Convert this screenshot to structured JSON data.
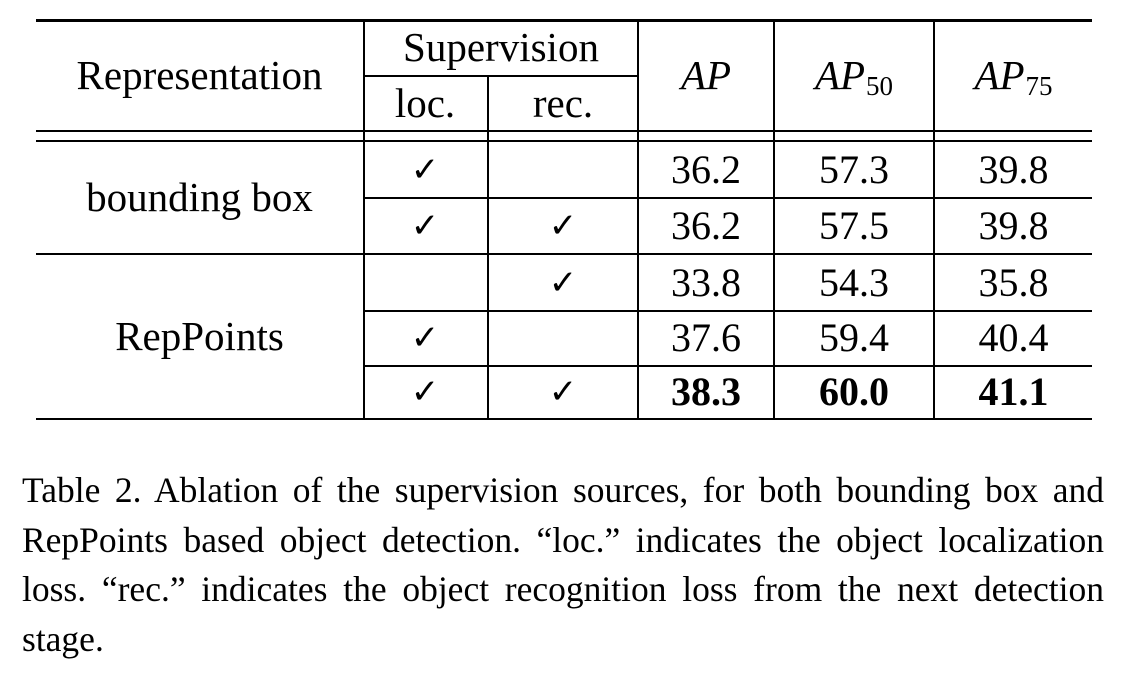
{
  "table": {
    "header": {
      "representation": "Representation",
      "supervision": "Supervision",
      "loc": "loc.",
      "rec": "rec.",
      "ap": "AP",
      "ap50_base": "AP",
      "ap50_sub": "50",
      "ap75_base": "AP",
      "ap75_sub": "75"
    },
    "check_mark": "✓",
    "groups": [
      {
        "label": "bounding box"
      },
      {
        "label": "RepPoints"
      }
    ],
    "rows": [
      {
        "group": 0,
        "loc": true,
        "rec": false,
        "ap": "36.2",
        "ap50": "57.3",
        "ap75": "39.8",
        "bold": false
      },
      {
        "group": 0,
        "loc": true,
        "rec": true,
        "ap": "36.2",
        "ap50": "57.5",
        "ap75": "39.8",
        "bold": false
      },
      {
        "group": 1,
        "loc": false,
        "rec": true,
        "ap": "33.8",
        "ap50": "54.3",
        "ap75": "35.8",
        "bold": false
      },
      {
        "group": 1,
        "loc": true,
        "rec": false,
        "ap": "37.6",
        "ap50": "59.4",
        "ap75": "40.4",
        "bold": false
      },
      {
        "group": 1,
        "loc": true,
        "rec": true,
        "ap": "38.3",
        "ap50": "60.0",
        "ap75": "41.1",
        "bold": true
      }
    ]
  },
  "caption": "Table 2. Ablation of the supervision sources, for both bounding box and RepPoints based object detection. “loc.” indicates the object localization loss. “rec.” indicates the object recognition loss from the next detection stage."
}
